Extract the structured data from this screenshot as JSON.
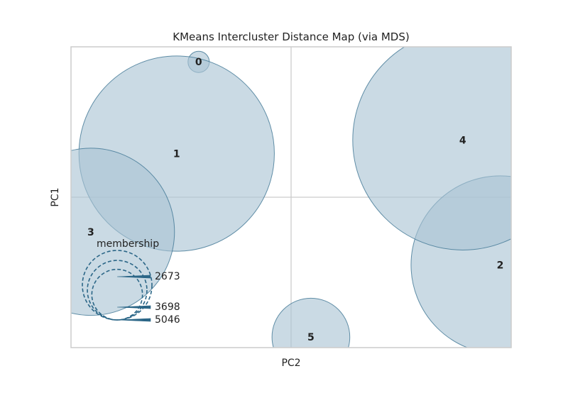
{
  "chart_data": {
    "type": "scatter",
    "title": "KMeans Intercluster Distance Map (via MDS)",
    "xlabel": "PC2",
    "ylabel": "PC1",
    "grid": false,
    "clusters": [
      {
        "label": "0",
        "x": -0.42,
        "y": 0.9,
        "size": 60
      },
      {
        "label": "1",
        "x": -0.52,
        "y": 0.29,
        "size": 5046
      },
      {
        "label": "2",
        "x": 0.95,
        "y": -0.45,
        "size": 4200
      },
      {
        "label": "3",
        "x": -0.91,
        "y": -0.23,
        "size": 3700
      },
      {
        "label": "4",
        "x": 0.78,
        "y": 0.38,
        "size": 6400
      },
      {
        "label": "5",
        "x": 0.09,
        "y": -0.93,
        "size": 800
      }
    ],
    "legend": {
      "title": "membership",
      "sizes": [
        2673,
        3698,
        5046
      ]
    },
    "colors": {
      "fill": "#a9c3d3",
      "edge": "#3e7594",
      "legend": "#2b6687",
      "frame": "#cccccc"
    }
  }
}
